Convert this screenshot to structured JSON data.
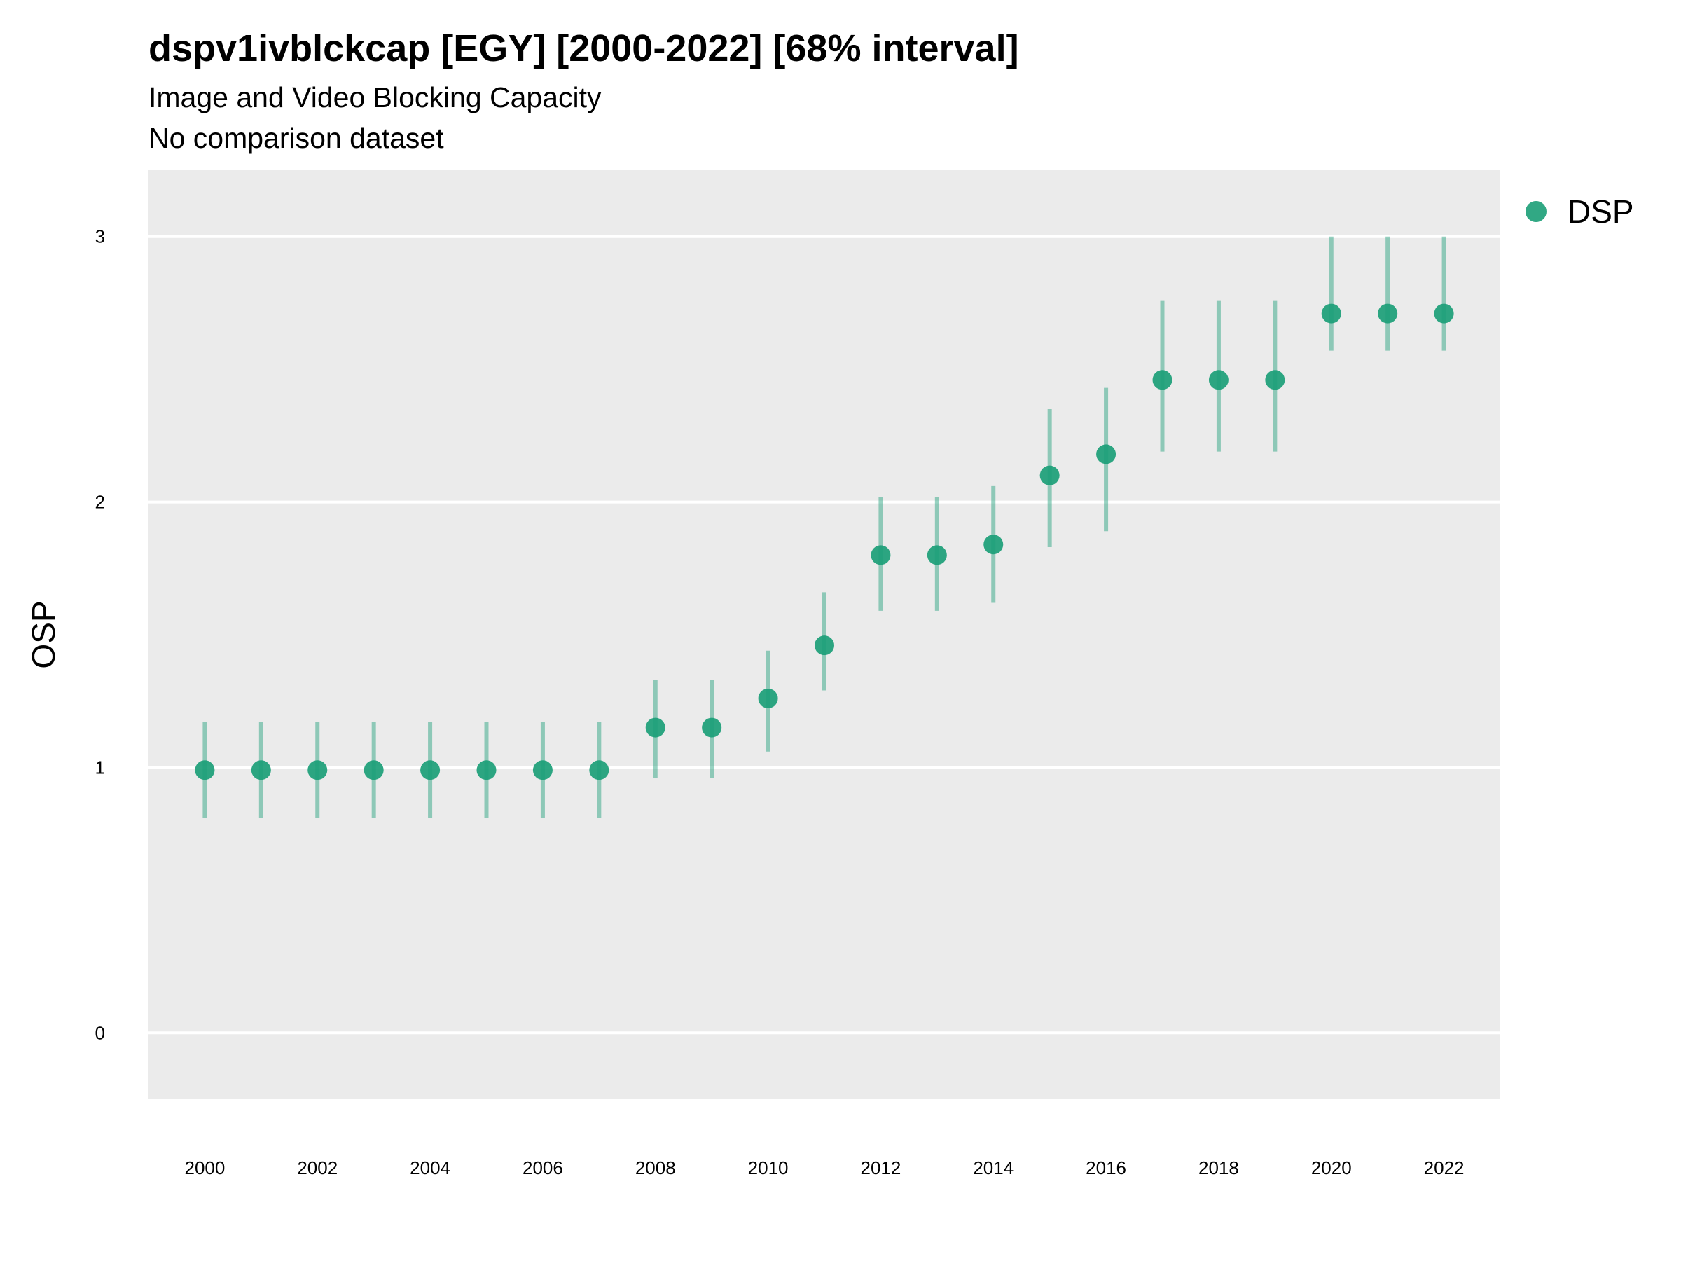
{
  "chart_data": {
    "type": "scatter",
    "title": "dspv1ivblckcap [EGY] [2000-2022] [68% interval]",
    "subtitle": "Image and Video Blocking Capacity",
    "caption": "No comparison dataset",
    "xlabel": "",
    "ylabel": "OSP",
    "xlim": [
      1999.0,
      2023.0
    ],
    "ylim": [
      -0.25,
      3.25
    ],
    "x_ticks": [
      2000,
      2002,
      2004,
      2006,
      2008,
      2010,
      2012,
      2014,
      2016,
      2018,
      2020,
      2022
    ],
    "y_ticks": [
      0,
      1,
      2,
      3
    ],
    "grid": "horizontal",
    "legend_position": "right",
    "series": [
      {
        "name": "DSP",
        "color": "#1b9e77",
        "x": [
          2000,
          2001,
          2002,
          2003,
          2004,
          2005,
          2006,
          2007,
          2008,
          2009,
          2010,
          2011,
          2012,
          2013,
          2014,
          2015,
          2016,
          2017,
          2018,
          2019,
          2020,
          2021,
          2022
        ],
        "y": [
          0.99,
          0.99,
          0.99,
          0.99,
          0.99,
          0.99,
          0.99,
          0.99,
          1.15,
          1.15,
          1.26,
          1.46,
          1.8,
          1.8,
          1.84,
          2.1,
          2.18,
          2.46,
          2.46,
          2.46,
          2.71,
          2.71,
          2.71
        ],
        "lower": [
          0.81,
          0.81,
          0.81,
          0.81,
          0.81,
          0.81,
          0.81,
          0.81,
          0.96,
          0.96,
          1.06,
          1.29,
          1.59,
          1.59,
          1.62,
          1.83,
          1.89,
          2.19,
          2.19,
          2.19,
          2.57,
          2.57,
          2.57
        ],
        "upper": [
          1.17,
          1.17,
          1.17,
          1.17,
          1.17,
          1.17,
          1.17,
          1.17,
          1.33,
          1.33,
          1.44,
          1.66,
          2.02,
          2.02,
          2.06,
          2.35,
          2.43,
          2.76,
          2.76,
          2.76,
          3.0,
          3.0,
          3.0
        ]
      }
    ]
  },
  "colors": {
    "panel_background": "#ebebeb",
    "gridline": "#ffffff",
    "point": "#1b9e77"
  }
}
